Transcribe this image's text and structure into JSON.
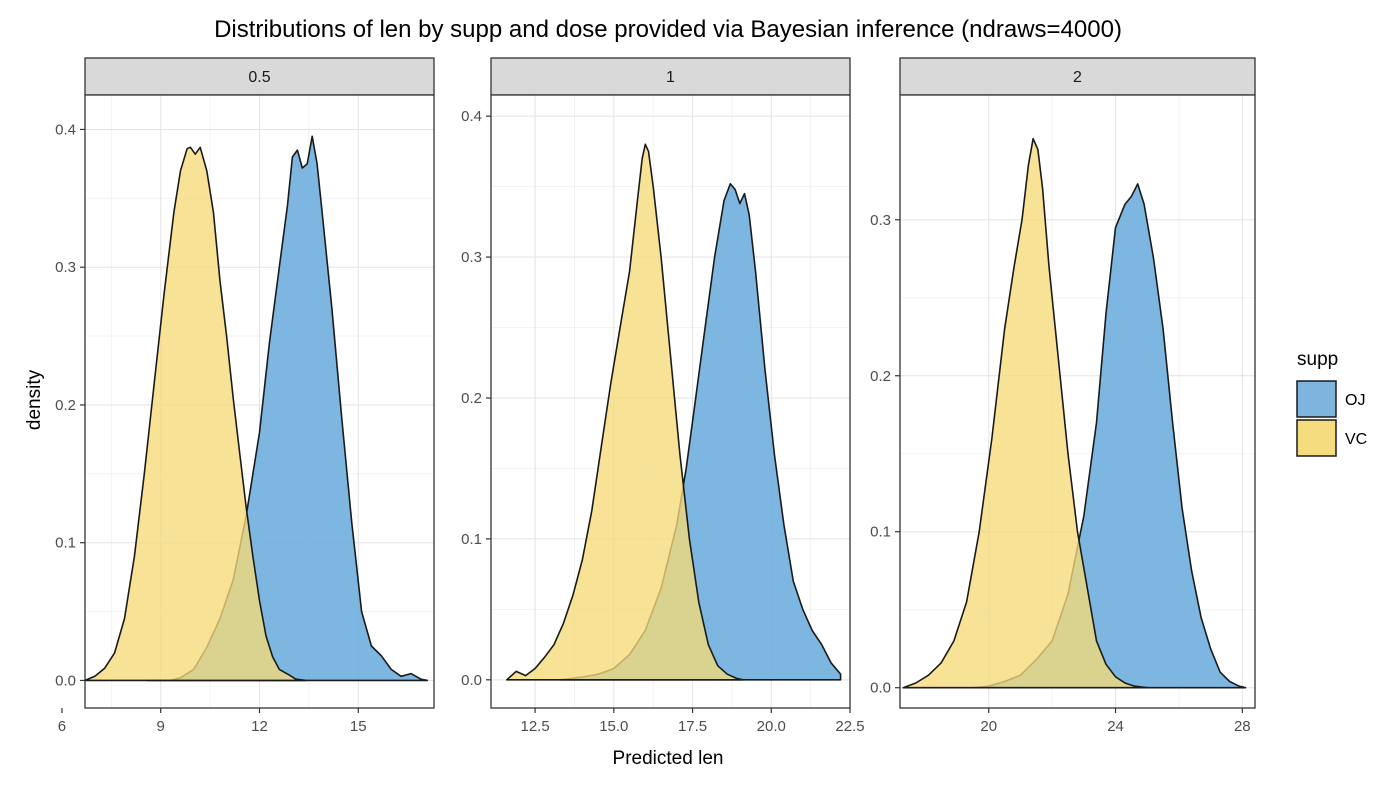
{
  "chart_data": {
    "type": "area",
    "title": "Distributions of len by supp and dose provided via Bayesian inference (ndraws=4000)",
    "xlabel": "Predicted len",
    "ylabel": "density",
    "grid": true,
    "legend": {
      "title": "supp",
      "placement": "right",
      "entries": [
        {
          "label": "OJ",
          "color": "#7DB5DF"
        },
        {
          "label": "VC",
          "color": "#F5DC7F"
        }
      ]
    },
    "colors": {
      "OJ": "#6FAEDD",
      "VC": "#F5DA78",
      "outline": "#1a1a1a"
    },
    "panels": [
      {
        "strip": "0.5",
        "xlim": [
          6.7,
          17.3
        ],
        "ylim": [
          -0.02,
          0.425
        ],
        "xticks": [
          {
            "v": 6,
            "label": "6"
          },
          {
            "v": 9,
            "label": "9"
          },
          {
            "v": 12,
            "label": "12"
          },
          {
            "v": 15,
            "label": "15"
          }
        ],
        "yticks": [
          {
            "v": 0,
            "label": "0.0"
          },
          {
            "v": 0.1,
            "label": "0.1"
          },
          {
            "v": 0.2,
            "label": "0.2"
          },
          {
            "v": 0.3,
            "label": "0.3"
          },
          {
            "v": 0.4,
            "label": "0.4"
          }
        ],
        "series": [
          {
            "name": "OJ",
            "x": [
              8.6,
              9.3,
              9.6,
              10.0,
              10.4,
              10.8,
              11.2,
              11.6,
              12.0,
              12.3,
              12.6,
              12.85,
              13.0,
              13.15,
              13.3,
              13.45,
              13.6,
              13.75,
              13.9,
              14.2,
              14.5,
              14.8,
              15.1,
              15.4,
              15.7,
              16.0,
              16.3,
              16.6,
              16.9,
              17.1
            ],
            "y": [
              0.0,
              0.0,
              0.002,
              0.008,
              0.024,
              0.045,
              0.073,
              0.12,
              0.18,
              0.245,
              0.3,
              0.345,
              0.38,
              0.385,
              0.372,
              0.375,
              0.395,
              0.375,
              0.34,
              0.27,
              0.19,
              0.115,
              0.05,
              0.025,
              0.018,
              0.008,
              0.003,
              0.005,
              0.001,
              0.0
            ]
          },
          {
            "name": "VC",
            "x": [
              6.7,
              7.0,
              7.3,
              7.6,
              7.9,
              8.2,
              8.5,
              8.8,
              9.1,
              9.4,
              9.6,
              9.8,
              9.9,
              10.05,
              10.2,
              10.4,
              10.6,
              10.8,
              11.0,
              11.2,
              11.4,
              11.6,
              11.8,
              12.0,
              12.2,
              12.4,
              12.6,
              12.9,
              13.1,
              13.4
            ],
            "y": [
              0.0,
              0.003,
              0.009,
              0.02,
              0.045,
              0.09,
              0.15,
              0.215,
              0.28,
              0.34,
              0.37,
              0.386,
              0.387,
              0.382,
              0.387,
              0.37,
              0.34,
              0.29,
              0.25,
              0.205,
              0.165,
              0.125,
              0.09,
              0.058,
              0.032,
              0.017,
              0.008,
              0.004,
              0.001,
              0.0
            ]
          }
        ]
      },
      {
        "strip": "1",
        "xlim": [
          11.1,
          22.5
        ],
        "ylim": [
          -0.02,
          0.415
        ],
        "xticks": [
          {
            "v": 12.5,
            "label": "12.5"
          },
          {
            "v": 15,
            "label": "15.0"
          },
          {
            "v": 17.5,
            "label": "17.5"
          },
          {
            "v": 20,
            "label": "20.0"
          },
          {
            "v": 22.5,
            "label": "22.5"
          }
        ],
        "yticks": [
          {
            "v": 0,
            "label": "0.0"
          },
          {
            "v": 0.1,
            "label": "0.1"
          },
          {
            "v": 0.2,
            "label": "0.2"
          },
          {
            "v": 0.3,
            "label": "0.3"
          },
          {
            "v": 0.4,
            "label": "0.4"
          }
        ],
        "series": [
          {
            "name": "OJ",
            "x": [
              13.3,
              14.0,
              14.5,
              15.0,
              15.5,
              16.0,
              16.5,
              17.0,
              17.3,
              17.6,
              17.9,
              18.2,
              18.5,
              18.7,
              18.85,
              19.0,
              19.15,
              19.3,
              19.5,
              19.8,
              20.1,
              20.4,
              20.7,
              21.0,
              21.3,
              21.6,
              21.9,
              22.2
            ],
            "y": [
              0.0,
              0.002,
              0.004,
              0.008,
              0.018,
              0.035,
              0.065,
              0.11,
              0.15,
              0.2,
              0.25,
              0.3,
              0.34,
              0.352,
              0.348,
              0.338,
              0.345,
              0.33,
              0.29,
              0.22,
              0.16,
              0.11,
              0.07,
              0.05,
              0.035,
              0.025,
              0.012,
              0.004
            ]
          },
          {
            "name": "VC",
            "x": [
              11.6,
              11.9,
              12.2,
              12.5,
              12.8,
              13.1,
              13.4,
              13.7,
              14.0,
              14.3,
              14.6,
              14.9,
              15.2,
              15.5,
              15.75,
              15.9,
              16.0,
              16.1,
              16.25,
              16.5,
              16.8,
              17.1,
              17.4,
              17.7,
              18.0,
              18.3,
              18.6,
              18.9,
              19.1
            ],
            "y": [
              0.0,
              0.006,
              0.003,
              0.008,
              0.016,
              0.025,
              0.04,
              0.06,
              0.085,
              0.12,
              0.165,
              0.21,
              0.25,
              0.29,
              0.34,
              0.37,
              0.38,
              0.375,
              0.35,
              0.3,
              0.23,
              0.16,
              0.1,
              0.055,
              0.025,
              0.01,
              0.004,
              0.001,
              0.0
            ]
          }
        ]
      },
      {
        "strip": "2",
        "xlim": [
          17.2,
          28.4
        ],
        "ylim": [
          -0.013,
          0.38
        ],
        "xticks": [
          {
            "v": 20,
            "label": "20"
          },
          {
            "v": 24,
            "label": "24"
          },
          {
            "v": 28,
            "label": "28"
          }
        ],
        "yticks": [
          {
            "v": 0,
            "label": "0.0"
          },
          {
            "v": 0.1,
            "label": "0.1"
          },
          {
            "v": 0.2,
            "label": "0.2"
          },
          {
            "v": 0.3,
            "label": "0.3"
          }
        ],
        "series": [
          {
            "name": "OJ",
            "x": [
              19.5,
              20.0,
              20.5,
              21.0,
              21.5,
              22.0,
              22.5,
              23.0,
              23.4,
              23.7,
              24.0,
              24.3,
              24.5,
              24.7,
              24.9,
              25.2,
              25.5,
              25.8,
              26.1,
              26.4,
              26.7,
              27.0,
              27.3,
              27.6,
              27.9,
              28.1
            ],
            "y": [
              0.0,
              0.001,
              0.004,
              0.008,
              0.018,
              0.03,
              0.06,
              0.11,
              0.17,
              0.24,
              0.295,
              0.31,
              0.315,
              0.323,
              0.31,
              0.275,
              0.23,
              0.17,
              0.115,
              0.075,
              0.045,
              0.025,
              0.01,
              0.004,
              0.001,
              0.0
            ]
          },
          {
            "name": "VC",
            "x": [
              17.3,
              17.7,
              18.1,
              18.5,
              18.9,
              19.3,
              19.7,
              20.1,
              20.5,
              20.8,
              21.05,
              21.25,
              21.4,
              21.55,
              21.7,
              21.9,
              22.2,
              22.5,
              22.8,
              23.1,
              23.4,
              23.7,
              24.0,
              24.3,
              24.6,
              25.0
            ],
            "y": [
              0.0,
              0.003,
              0.008,
              0.016,
              0.03,
              0.055,
              0.1,
              0.16,
              0.23,
              0.27,
              0.3,
              0.335,
              0.352,
              0.345,
              0.32,
              0.27,
              0.21,
              0.15,
              0.1,
              0.065,
              0.03,
              0.015,
              0.007,
              0.003,
              0.001,
              0.0
            ]
          }
        ]
      }
    ]
  }
}
